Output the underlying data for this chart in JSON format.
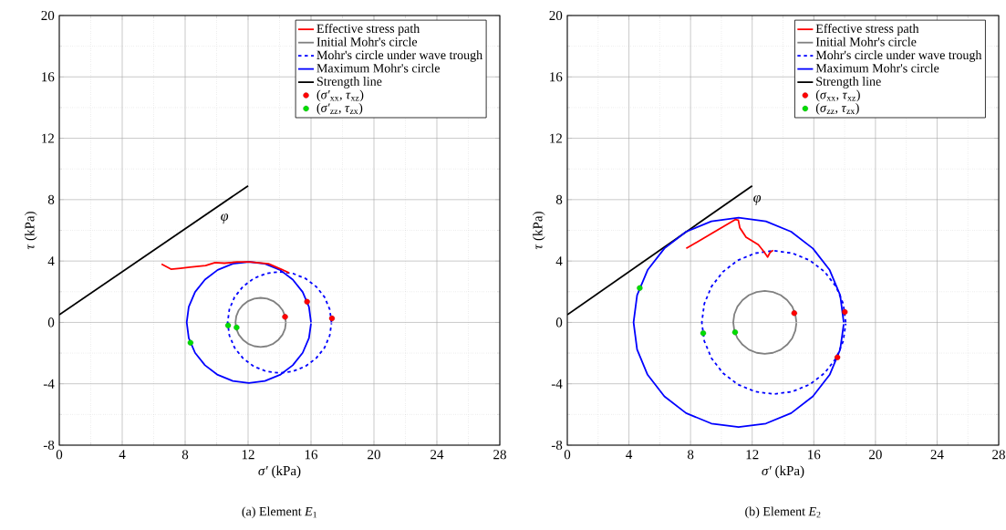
{
  "chart_data": [
    {
      "type": "line",
      "title": "(a)  Element *E*$_{1}$",
      "xlabel": "*σ′* (kPa)",
      "ylabel": "*τ* (kPa)",
      "xlim": [
        0,
        28
      ],
      "ylim": [
        -8,
        20
      ],
      "xticks": [
        0,
        4,
        8,
        12,
        16,
        20,
        24,
        28
      ],
      "yticks": [
        -8,
        -4,
        0,
        4,
        8,
        12,
        16,
        20
      ],
      "grid": true,
      "legend": "top right",
      "annotations": [
        "*φ*"
      ],
      "series": [
        {
          "name": "Effective stress path",
          "color": "#ff0000",
          "line_style": "solid",
          "x": [
            6.5,
            7.1,
            7.7,
            8.3,
            9.3,
            9.9,
            10.5,
            11.3,
            12.1,
            13.3,
            14.1,
            14.6
          ],
          "values": [
            3.8,
            3.47,
            3.53,
            3.6,
            3.7,
            3.9,
            3.86,
            3.94,
            3.94,
            3.82,
            3.47,
            3.23
          ]
        },
        {
          "name": "Initial Mohr's circle",
          "color": "#808080",
          "line_style": "solid",
          "x": [
            14.4,
            14.35,
            14.19,
            13.93,
            13.6,
            13.21,
            12.8,
            12.39,
            12.0,
            11.67,
            11.41,
            11.25,
            11.2,
            11.25,
            11.41,
            11.67,
            12.0,
            12.39,
            12.8,
            13.21,
            13.6,
            13.93,
            14.19,
            14.35,
            14.4
          ],
          "values": [
            0,
            0.41,
            0.8,
            1.13,
            1.39,
            1.55,
            1.6,
            1.55,
            1.39,
            1.13,
            0.8,
            0.41,
            0,
            -0.41,
            -0.8,
            -1.13,
            -1.39,
            -1.55,
            -1.6,
            -1.55,
            -1.39,
            -1.13,
            -0.8,
            -0.41,
            -0.03
          ]
        },
        {
          "name": "Mohr's circle under wave trough",
          "color": "#0000ff",
          "line_style": "dashed",
          "x": [
            17.3,
            17.19,
            16.86,
            16.33,
            15.65,
            14.85,
            14.0,
            13.15,
            12.35,
            11.67,
            11.14,
            10.81,
            10.7,
            10.81,
            11.14,
            11.67,
            12.35,
            13.15,
            14.0,
            14.85,
            15.65,
            16.33,
            16.86,
            17.19,
            17.3
          ],
          "values": [
            0,
            0.85,
            1.65,
            2.33,
            2.86,
            3.19,
            3.3,
            3.19,
            2.86,
            2.33,
            1.65,
            0.85,
            0,
            -0.85,
            -1.65,
            -2.33,
            -2.86,
            -3.19,
            -3.3,
            -3.19,
            -2.86,
            -2.33,
            -1.65,
            -0.85,
            -0.06
          ]
        },
        {
          "name": "Maximum Mohr's circle",
          "color": "#0000ff",
          "line_style": "solid",
          "x": [
            16.0,
            15.87,
            15.47,
            14.84,
            14.03,
            13.07,
            12.05,
            11.03,
            10.07,
            9.26,
            8.63,
            8.23,
            8.1,
            8.23,
            8.63,
            9.26,
            10.07,
            11.03,
            12.05,
            13.07,
            14.03,
            14.84,
            15.47,
            15.87,
            16.0
          ],
          "values": [
            0,
            1.02,
            1.98,
            2.79,
            3.42,
            3.82,
            3.95,
            3.82,
            3.42,
            2.79,
            1.98,
            1.02,
            0,
            -1.02,
            -1.98,
            -2.79,
            -3.42,
            -3.82,
            -3.95,
            -3.82,
            -3.42,
            -2.79,
            -1.98,
            -1.02,
            -0.07
          ]
        },
        {
          "name": "Strength line",
          "color": "#000000",
          "line_style": "solid",
          "x": [
            0,
            12
          ],
          "values": [
            0.5,
            8.9
          ]
        },
        {
          "name": "(*σ′*$_{xx}$, *τ*$_{xz}$)",
          "color": "#ff0000",
          "type": "scatter",
          "x": [
            14.35,
            15.75,
            17.33
          ],
          "values": [
            0.36,
            1.35,
            0.26
          ]
        },
        {
          "name": "(*σ′*$_{zz}$, *τ*$_{zx}$)",
          "color": "#00dd00",
          "type": "scatter",
          "x": [
            10.73,
            11.27,
            8.34
          ],
          "values": [
            -0.2,
            -0.33,
            -1.32
          ]
        }
      ]
    },
    {
      "type": "line",
      "title": "(b) Element *E*$_{2}$",
      "xlabel": "*σ′* (kPa)",
      "ylabel": "*τ* (kPa)",
      "xlim": [
        0,
        28
      ],
      "ylim": [
        -8,
        20
      ],
      "xticks": [
        0,
        4,
        8,
        12,
        16,
        20,
        24,
        28
      ],
      "yticks": [
        -8,
        -4,
        0,
        4,
        8,
        12,
        16,
        20
      ],
      "grid": true,
      "legend": "top right",
      "annotations": [
        "*φ*"
      ],
      "series": [
        {
          "name": "Effective stress path",
          "color": "#ff0000",
          "line_style": "solid",
          "x": [
            7.72,
            10.9,
            11.1,
            11.2,
            11.6,
            12.4,
            12.8,
            13.0,
            13.16,
            13.36
          ],
          "values": [
            4.82,
            6.7,
            6.66,
            6.16,
            5.56,
            5.06,
            4.56,
            4.26,
            4.56,
            4.7
          ]
        },
        {
          "name": "Initial Mohr's circle",
          "color": "#808080",
          "line_style": "solid",
          "x": [
            14.87,
            14.8,
            14.6,
            14.27,
            13.85,
            13.35,
            12.82,
            12.29,
            11.79,
            11.37,
            11.04,
            10.84,
            10.77,
            10.84,
            11.04,
            11.37,
            11.79,
            12.29,
            12.82,
            13.35,
            13.85,
            14.27,
            14.6,
            14.8,
            14.87
          ],
          "values": [
            0,
            0.53,
            1.03,
            1.45,
            1.78,
            1.98,
            2.05,
            1.98,
            1.78,
            1.45,
            1.03,
            0.53,
            0,
            -0.53,
            -1.03,
            -1.45,
            -1.78,
            -1.98,
            -2.05,
            -1.98,
            -1.78,
            -1.45,
            -1.03,
            -0.53,
            -0.04
          ]
        },
        {
          "name": "Mohr's circle under wave trough",
          "color": "#0000ff",
          "line_style": "dashed",
          "x": [
            18.07,
            17.91,
            17.44,
            16.7,
            15.74,
            14.61,
            13.4,
            12.19,
            11.06,
            10.1,
            9.36,
            8.89,
            8.73,
            8.89,
            9.36,
            10.1,
            11.06,
            12.19,
            13.4,
            14.61,
            15.74,
            16.7,
            17.44,
            17.91,
            18.07
          ],
          "values": [
            0,
            1.21,
            2.34,
            3.3,
            4.04,
            4.51,
            4.67,
            4.51,
            4.04,
            3.3,
            2.34,
            1.21,
            0,
            -1.21,
            -2.34,
            -3.3,
            -4.04,
            -4.51,
            -4.67,
            -4.51,
            -4.04,
            -3.3,
            -2.34,
            -1.21,
            -0.08
          ]
        },
        {
          "name": "Maximum Mohr's circle",
          "color": "#0000ff",
          "line_style": "solid",
          "x": [
            17.94,
            17.71,
            17.03,
            15.94,
            14.53,
            12.89,
            11.12,
            9.35,
            7.71,
            6.3,
            5.21,
            4.53,
            4.3,
            4.53,
            5.21,
            6.3,
            7.71,
            9.35,
            11.12,
            12.89,
            14.53,
            15.94,
            17.03,
            17.71,
            17.94
          ],
          "values": [
            0,
            1.77,
            3.41,
            4.82,
            5.91,
            6.59,
            6.82,
            6.59,
            5.91,
            4.82,
            3.41,
            1.77,
            0,
            -1.77,
            -3.41,
            -4.82,
            -5.91,
            -6.59,
            -6.82,
            -6.59,
            -5.91,
            -4.82,
            -3.41,
            -1.77,
            -0.12
          ]
        },
        {
          "name": "Strength line",
          "color": "#000000",
          "line_style": "solid",
          "x": [
            0,
            12
          ],
          "values": [
            0.5,
            8.9
          ]
        },
        {
          "name": "(*σ*$_{xx}$, *τ*$_{xz}$)",
          "color": "#ff0000",
          "type": "scatter",
          "x": [
            14.73,
            17.53,
            18.01
          ],
          "values": [
            0.6,
            -2.28,
            0.68
          ]
        },
        {
          "name": "(*σ*$_{zz}$, *τ*$_{zx}$)",
          "color": "#00dd00",
          "type": "scatter",
          "x": [
            4.7,
            8.82,
            10.89
          ],
          "values": [
            2.24,
            -0.7,
            -0.64
          ]
        }
      ]
    }
  ]
}
